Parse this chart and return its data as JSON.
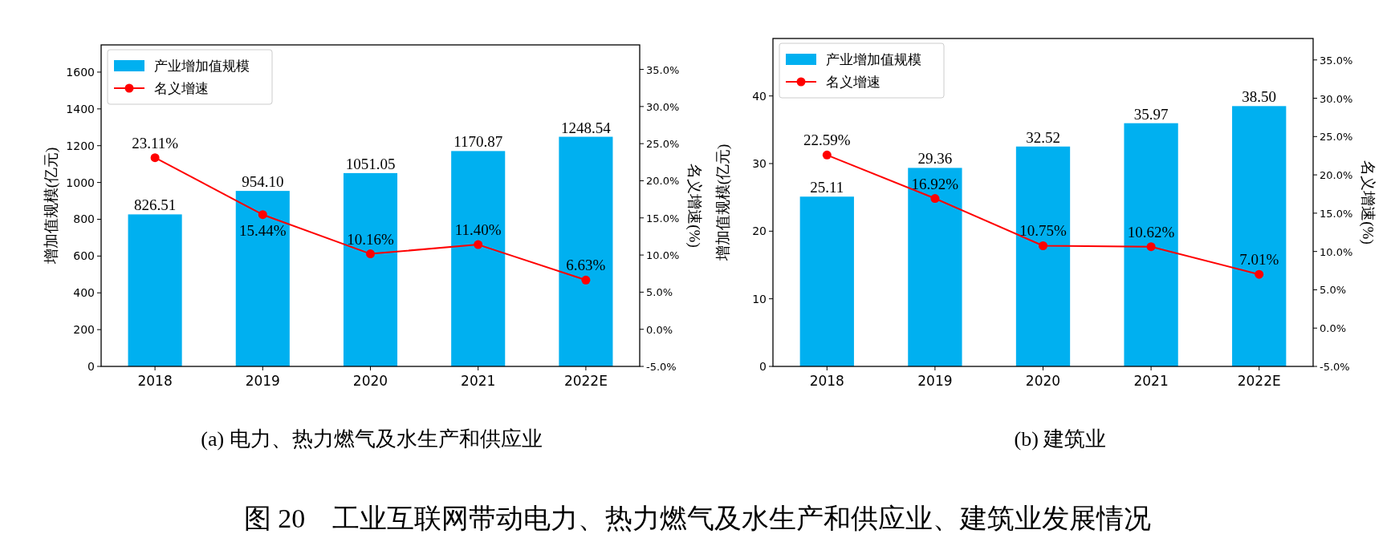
{
  "chart_data": [
    {
      "type": "bar",
      "title": "(a) 电力、热力燃气及水生产和供应业",
      "annotations": [
        "图 20　工业互联网带动电力、热力燃气及水生产和供应业、建筑业发展情况"
      ],
      "categories": [
        "2018",
        "2019",
        "2020",
        "2021",
        "2022E"
      ],
      "ylabel": "增加值规模(亿元)",
      "y2label": "名义增速(%)",
      "series": [
        {
          "name": "产业增加值规模",
          "type": "bar",
          "color": "#00b0f0",
          "values": [
            826.51,
            954.1,
            1051.05,
            1170.87,
            1248.54
          ],
          "value_labels": [
            "826.51",
            "954.10",
            "1051.05",
            "1170.87",
            "1248.54"
          ]
        },
        {
          "name": "名义增速",
          "type": "line",
          "axis": "y2",
          "color": "#ff0000",
          "values": [
            23.11,
            15.44,
            10.16,
            11.4,
            6.63
          ],
          "value_labels": [
            "23.11%",
            "15.44%",
            "10.16%",
            "11.40%",
            "6.63%"
          ]
        }
      ],
      "ylim": [
        0,
        1748
      ],
      "yticks": [
        0,
        200,
        400,
        600,
        800,
        1000,
        1200,
        1400,
        1600
      ],
      "y2lim": [
        -5,
        38.3
      ],
      "y2ticks": [
        {
          "value": -5,
          "label": "-5.0%"
        },
        {
          "value": 0,
          "label": "0.0%"
        },
        {
          "value": 5,
          "label": "5.0%"
        },
        {
          "value": 10,
          "label": "10.0%"
        },
        {
          "value": 15,
          "label": "15.0%"
        },
        {
          "value": 20,
          "label": "20.0%"
        },
        {
          "value": 25,
          "label": "25.0%"
        },
        {
          "value": 30,
          "label": "30.0%"
        },
        {
          "value": 35,
          "label": "35.0%"
        }
      ],
      "legend": "top left",
      "marker": "circle",
      "grid": false
    },
    {
      "type": "bar",
      "title": "(b) 建筑业",
      "categories": [
        "2018",
        "2019",
        "2020",
        "2021",
        "2022E"
      ],
      "ylabel": "增加值规模(亿元)",
      "y2label": "名义增速(%)",
      "series": [
        {
          "name": "产业增加值规模",
          "type": "bar",
          "color": "#00b0f0",
          "values": [
            25.11,
            29.36,
            32.52,
            35.97,
            38.5
          ],
          "value_labels": [
            "25.11",
            "29.36",
            "32.52",
            "35.97",
            "38.50"
          ]
        },
        {
          "name": "名义增速",
          "type": "line",
          "axis": "y2",
          "color": "#ff0000",
          "values": [
            22.59,
            16.92,
            10.75,
            10.62,
            7.01
          ],
          "value_labels": [
            "22.59%",
            "16.92%",
            "10.75%",
            "10.62%",
            "7.01%"
          ]
        }
      ],
      "ylim": [
        0,
        48.5
      ],
      "yticks": [
        0,
        10,
        20,
        30,
        40
      ],
      "y2lim": [
        -5,
        37.8
      ],
      "y2ticks": [
        {
          "value": -5,
          "label": "-5.0%"
        },
        {
          "value": 0,
          "label": "0.0%"
        },
        {
          "value": 5,
          "label": "5.0%"
        },
        {
          "value": 10,
          "label": "10.0%"
        },
        {
          "value": 15,
          "label": "15.0%"
        },
        {
          "value": 20,
          "label": "20.0%"
        },
        {
          "value": 25,
          "label": "25.0%"
        },
        {
          "value": 30,
          "label": "30.0%"
        },
        {
          "value": 35,
          "label": "35.0%"
        }
      ],
      "legend": "top left",
      "marker": "circle",
      "grid": false
    }
  ]
}
